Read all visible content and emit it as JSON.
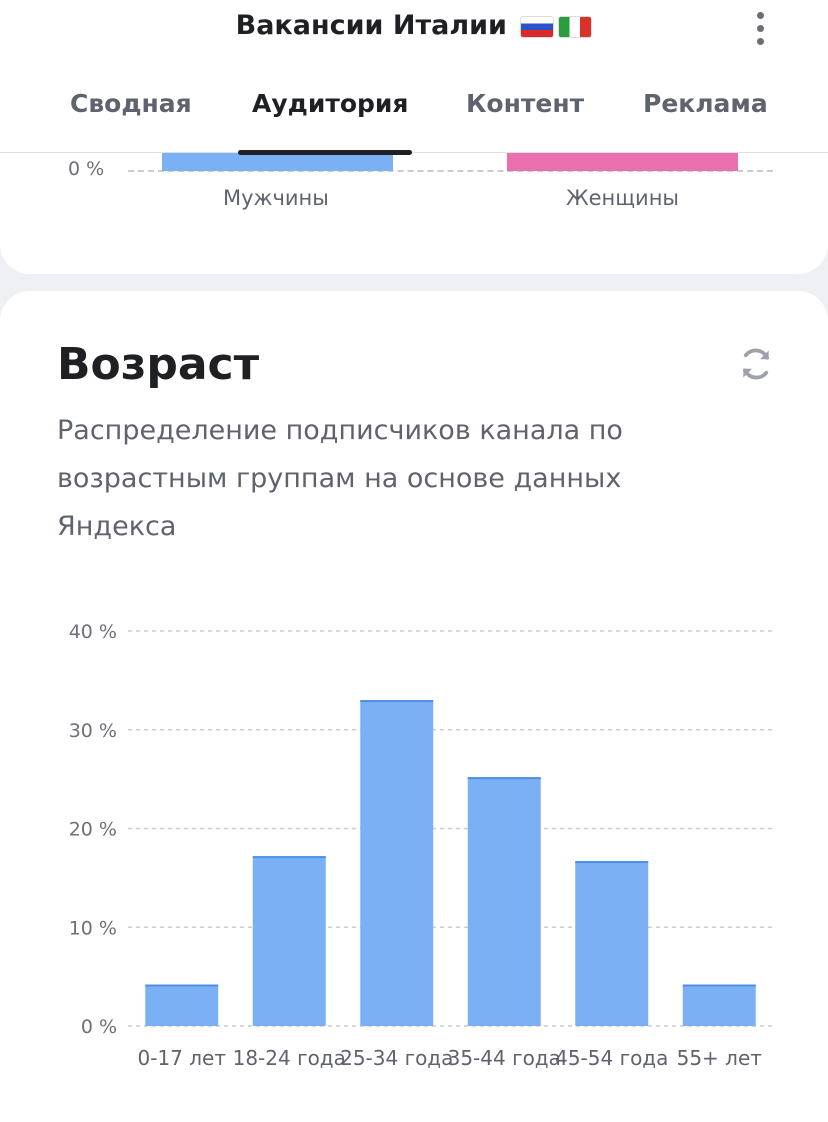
{
  "header": {
    "title": "Вакансии Италии",
    "flags": [
      "flag-russia-icon",
      "flag-italy-icon"
    ],
    "menu_icon": "more-vertical-icon"
  },
  "tabs": [
    {
      "label": "Сводная",
      "active": false
    },
    {
      "label": "Аудитория",
      "active": true
    },
    {
      "label": "Контент",
      "active": false
    },
    {
      "label": "Реклама",
      "active": false
    }
  ],
  "gender_card": {
    "zero_label": "0 %",
    "labels": [
      "Мужчины",
      "Женщины"
    ],
    "colors": [
      "#7cb0f5",
      "#ea6fae"
    ]
  },
  "age_card": {
    "title": "Возраст",
    "description": "Распределение подписчиков канала по возрастным группам на основе данных Яндекса",
    "refresh_icon": "refresh-icon"
  },
  "chart_data": {
    "type": "bar",
    "categories": [
      "0-17 лет",
      "18-24 года",
      "25-34 года",
      "35-44 года",
      "45-54 года",
      "55+ лет"
    ],
    "values": [
      4.2,
      17.2,
      33.0,
      25.2,
      16.7,
      4.2
    ],
    "ylim": [
      0,
      40
    ],
    "yticks": [
      0,
      10,
      20,
      30,
      40
    ],
    "ytick_labels": [
      "0 %",
      "10 %",
      "20 %",
      "30 %",
      "40 %"
    ],
    "grid": true,
    "bar_color": "#7cb0f5",
    "bar_top_color": "#4f8fe8"
  }
}
